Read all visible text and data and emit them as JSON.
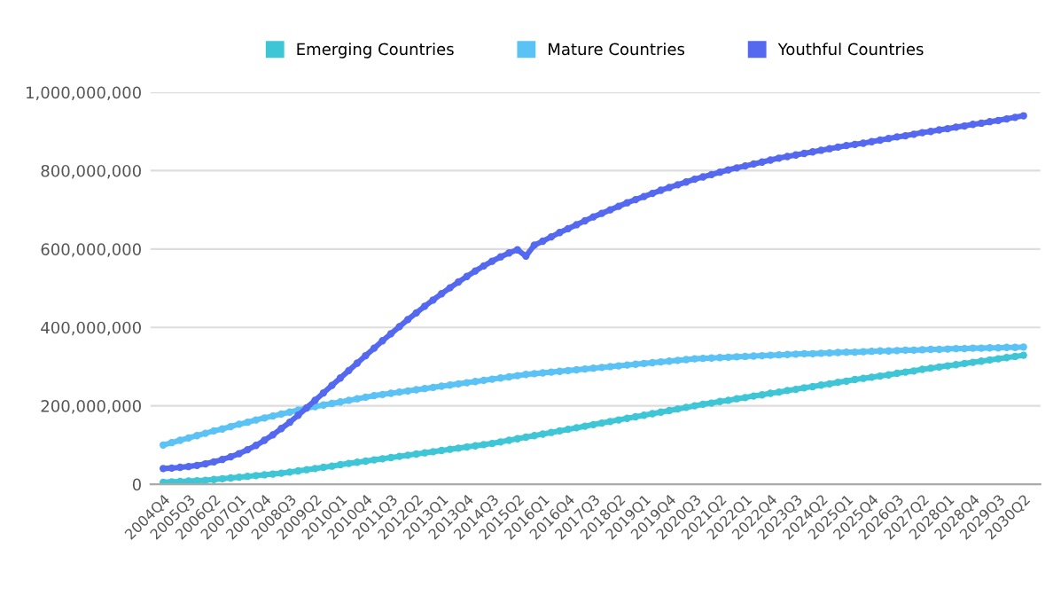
{
  "chart_data": {
    "type": "line",
    "categories": [
      "2004Q4",
      null,
      null,
      "2005Q3",
      null,
      null,
      "2006Q2",
      null,
      null,
      "2007Q1",
      null,
      null,
      "2007Q4",
      null,
      null,
      "2008Q3",
      null,
      null,
      "2009Q2",
      null,
      null,
      "2010Q1",
      null,
      null,
      "2010Q4",
      null,
      null,
      "2011Q3",
      null,
      null,
      "2012Q2",
      null,
      null,
      "2013Q1",
      null,
      null,
      "2013Q4",
      null,
      null,
      "2014Q3",
      null,
      null,
      "2015Q2",
      null,
      null,
      "2016Q1",
      null,
      null,
      "2016Q4",
      null,
      null,
      "2017Q3",
      null,
      null,
      "2018Q2",
      null,
      null,
      "2019Q1",
      null,
      null,
      "2019Q4",
      null,
      null,
      "2020Q3",
      null,
      null,
      "2021Q2",
      null,
      null,
      "2022Q1",
      null,
      null,
      "2022Q4",
      null,
      null,
      "2023Q3",
      null,
      null,
      "2024Q2",
      null,
      null,
      "2025Q1",
      null,
      null,
      "2025Q4",
      null,
      null,
      "2026Q3",
      null,
      null,
      "2027Q2",
      null,
      null,
      "2028Q1",
      null,
      null,
      "2028Q4",
      null,
      null,
      "2029Q3",
      null,
      null,
      "2030Q2"
    ],
    "series": [
      {
        "name": "Emerging Countries",
        "color": "#3ec6d6",
        "values": [
          5000000.0,
          6000000.0,
          7000000.0,
          8000000.0,
          9000000.0,
          10000000.0,
          12000000.0,
          14000000.0,
          16000000.0,
          18000000.0,
          20000000.0,
          22000000.0,
          24000000.0,
          26000000.0,
          28000000.0,
          31000000.0,
          34000000.0,
          37000000.0,
          40000000.0,
          43000000.0,
          46000000.0,
          50000000.0,
          53000000.0,
          56000000.0,
          59000000.0,
          62000000.0,
          65000000.0,
          68000000.0,
          71000000.0,
          74000000.0,
          77000000.0,
          80000000.0,
          83000000.0,
          86000000.0,
          89000000.0,
          92000000.0,
          95000000.0,
          98000000.0,
          101000000.0,
          104000000.0,
          108000000.0,
          112000000.0,
          116000000.0,
          120000000.0,
          124000000.0,
          128000000.0,
          132000000.0,
          136000000.0,
          140000000.0,
          144000000.0,
          148000000.0,
          152000000.0,
          156000000.0,
          160000000.0,
          164000000.0,
          168000000.0,
          172000000.0,
          176000000.0,
          180000000.0,
          184000000.0,
          188000000.0,
          192000000.0,
          196000000.0,
          200000000.0,
          204000000.0,
          207000000.0,
          211000000.0,
          214000000.0,
          218000000.0,
          221000000.0,
          225000000.0,
          228000000.0,
          232000000.0,
          235000000.0,
          239000000.0,
          242000000.0,
          246000000.0,
          249000000.0,
          253000000.0,
          256000000.0,
          260000000.0,
          263000000.0,
          267000000.0,
          270000000.0,
          273000000.0,
          276000000.0,
          279000000.0,
          283000000.0,
          286000000.0,
          289000000.0,
          293000000.0,
          296000000.0,
          299000000.0,
          302000000.0,
          305000000.0,
          308000000.0,
          311000000.0,
          314000000.0,
          317000000.0,
          320000000.0,
          323000000.0,
          326000000.0,
          329000000.0
        ]
      },
      {
        "name": "Mature Countries",
        "color": "#5bc2f5",
        "values": [
          100000000.0,
          106000000.0,
          112000000.0,
          118000000.0,
          124000000.0,
          130000000.0,
          136000000.0,
          141000000.0,
          147000000.0,
          153000000.0,
          158000000.0,
          164000000.0,
          169000000.0,
          174000000.0,
          179000000.0,
          184000000.0,
          189000000.0,
          194000000.0,
          198000000.0,
          202000000.0,
          206000000.0,
          210000000.0,
          214000000.0,
          218000000.0,
          222000000.0,
          226000000.0,
          229000000.0,
          232000000.0,
          235000000.0,
          238000000.0,
          241000000.0,
          244000000.0,
          247000000.0,
          250000000.0,
          253000000.0,
          256000000.0,
          259000000.0,
          262000000.0,
          265000000.0,
          268000000.0,
          271000000.0,
          274000000.0,
          277000000.0,
          280000000.0,
          282000000.0,
          284000000.0,
          286000000.0,
          288000000.0,
          290000000.0,
          292000000.0,
          294000000.0,
          296000000.0,
          298000000.0,
          300000000.0,
          302000000.0,
          304000000.0,
          306000000.0,
          308000000.0,
          310000000.0,
          312000000.0,
          314000000.0,
          316000000.0,
          318000000.0,
          320000000.0,
          321000000.0,
          322000000.0,
          323000000.0,
          324000000.0,
          325000000.0,
          326000000.0,
          327000000.0,
          328000000.0,
          329000000.0,
          330000000.0,
          331000000.0,
          332000000.0,
          333000000.0,
          333000000.0,
          334000000.0,
          335000000.0,
          336000000.0,
          337000000.0,
          337000000.0,
          338000000.0,
          339000000.0,
          340000000.0,
          340000000.0,
          341000000.0,
          342000000.0,
          342000000.0,
          343000000.0,
          344000000.0,
          344000000.0,
          345000000.0,
          346000000.0,
          346000000.0,
          347000000.0,
          347000000.0,
          348000000.0,
          348000000.0,
          349000000.0,
          349000000.0,
          350000000.0
        ]
      },
      {
        "name": "Youthful Countries",
        "color": "#5468f0",
        "values": [
          40000000.0,
          41000000.0,
          43000000.0,
          45000000.0,
          48000000.0,
          52000000.0,
          57000000.0,
          63000000.0,
          70000000.0,
          78000000.0,
          88000000.0,
          99000000.0,
          112000000.0,
          126000000.0,
          142000000.0,
          158000000.0,
          176000000.0,
          195000000.0,
          214000000.0,
          233000000.0,
          252000000.0,
          271000000.0,
          290000000.0,
          309000000.0,
          328000000.0,
          347000000.0,
          366000000.0,
          384000000.0,
          402000000.0,
          420000000.0,
          437000000.0,
          454000000.0,
          470000000.0,
          486000000.0,
          501000000.0,
          516000000.0,
          530000000.0,
          544000000.0,
          557000000.0,
          569000000.0,
          580000000.0,
          590000000.0,
          598000000.0,
          582000000.0,
          610000000.0,
          620000000.0,
          631000000.0,
          642000000.0,
          652000000.0,
          662000000.0,
          672000000.0,
          682000000.0,
          691000000.0,
          700000000.0,
          709000000.0,
          718000000.0,
          726000000.0,
          734000000.0,
          742000000.0,
          750000000.0,
          757000000.0,
          764000000.0,
          771000000.0,
          778000000.0,
          784000000.0,
          790000000.0,
          796000000.0,
          802000000.0,
          807000000.0,
          812000000.0,
          817000000.0,
          822000000.0,
          827000000.0,
          832000000.0,
          836000000.0,
          840000000.0,
          844000000.0,
          848000000.0,
          852000000.0,
          856000000.0,
          860000000.0,
          864000000.0,
          867000000.0,
          870000000.0,
          874000000.0,
          878000000.0,
          882000000.0,
          886000000.0,
          889000000.0,
          893000000.0,
          897000000.0,
          900000000.0,
          904000000.0,
          907000000.0,
          911000000.0,
          914000000.0,
          918000000.0,
          921000000.0,
          925000000.0,
          928000000.0,
          932000000.0,
          936000000.0,
          940000000.0
        ]
      }
    ],
    "ylim": [
      0,
      1000000000
    ],
    "yticks": [
      {
        "value": 0,
        "label": "0"
      },
      {
        "value": 200000000,
        "label": "200,000,000"
      },
      {
        "value": 400000000,
        "label": "400,000,000"
      },
      {
        "value": 600000000,
        "label": "600,000,000"
      },
      {
        "value": 800000000,
        "label": "800,000,000"
      },
      {
        "value": 1000000000,
        "label": "1,000,000,000"
      }
    ],
    "grid": "y",
    "legend": "top",
    "marker": "circle",
    "line_style": "solid"
  }
}
